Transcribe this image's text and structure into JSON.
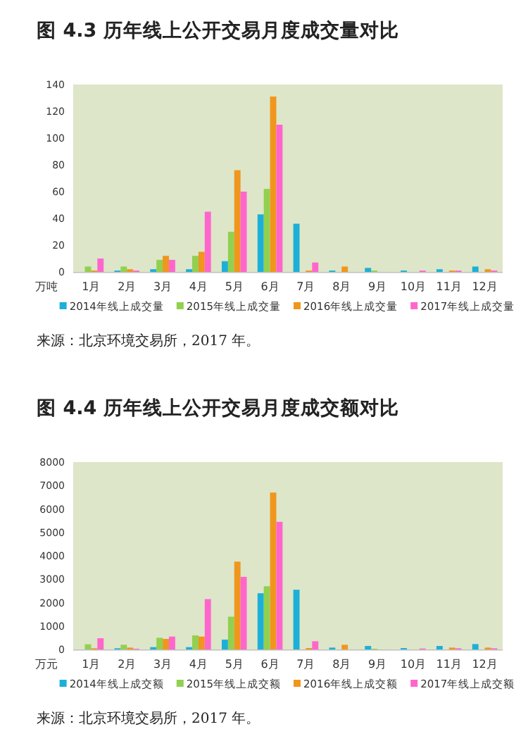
{
  "chart_data": [
    {
      "type": "bar",
      "title": "图 4.3 历年线上公开交易月度成交量对比",
      "ylabel": "万吨",
      "annotations": [
        "来源：北京环境交易所，2017 年。"
      ],
      "categories": [
        "1月",
        "2月",
        "3月",
        "4月",
        "5月",
        "6月",
        "7月",
        "8月",
        "9月",
        "10月",
        "11月",
        "12月"
      ],
      "ylim": [
        0,
        140
      ],
      "yticks": [
        0,
        20,
        40,
        60,
        80,
        100,
        120,
        140
      ],
      "grid": false,
      "legend": "bottom",
      "series": [
        {
          "name": "2014年线上成交量",
          "color": "#1cb0d8",
          "values": [
            0,
            1,
            2,
            2,
            8,
            43,
            36,
            1,
            3,
            1,
            2,
            4
          ]
        },
        {
          "name": "2015年线上成交量",
          "color": "#92d050",
          "values": [
            4,
            4,
            9,
            12,
            30,
            62,
            0,
            0,
            1,
            0,
            0,
            0
          ]
        },
        {
          "name": "2016年线上成交量",
          "color": "#f0961e",
          "values": [
            1,
            2,
            12,
            15,
            76,
            131,
            1,
            4,
            0,
            0,
            1,
            2
          ]
        },
        {
          "name": "2017年线上成交量",
          "color": "#ff66cc",
          "values": [
            10,
            1,
            9,
            45,
            60,
            110,
            7,
            0,
            0,
            1,
            1,
            1
          ]
        }
      ]
    },
    {
      "type": "bar",
      "title": "图 4.4 历年线上公开交易月度成交额对比",
      "ylabel": "万元",
      "annotations": [
        "来源：北京环境交易所，2017 年。"
      ],
      "categories": [
        "1月",
        "2月",
        "3月",
        "4月",
        "5月",
        "6月",
        "7月",
        "8月",
        "9月",
        "10月",
        "11月",
        "12月"
      ],
      "ylim": [
        0,
        8000
      ],
      "yticks": [
        0,
        1000,
        2000,
        3000,
        4000,
        5000,
        6000,
        7000,
        8000
      ],
      "grid": false,
      "legend": "bottom",
      "series": [
        {
          "name": "2014年线上成交额",
          "color": "#1cb0d8",
          "values": [
            0,
            50,
            100,
            100,
            420,
            2400,
            2550,
            80,
            150,
            60,
            150,
            230
          ]
        },
        {
          "name": "2015年线上成交额",
          "color": "#92d050",
          "values": [
            220,
            200,
            500,
            600,
            1400,
            2700,
            0,
            0,
            30,
            0,
            0,
            0
          ]
        },
        {
          "name": "2016年线上成交额",
          "color": "#f0961e",
          "values": [
            50,
            80,
            450,
            550,
            3750,
            6700,
            60,
            200,
            0,
            0,
            80,
            80
          ]
        },
        {
          "name": "2017年线上成交额",
          "color": "#ff66cc",
          "values": [
            480,
            30,
            550,
            2150,
            3100,
            5450,
            350,
            0,
            0,
            40,
            50,
            50
          ]
        }
      ]
    }
  ]
}
